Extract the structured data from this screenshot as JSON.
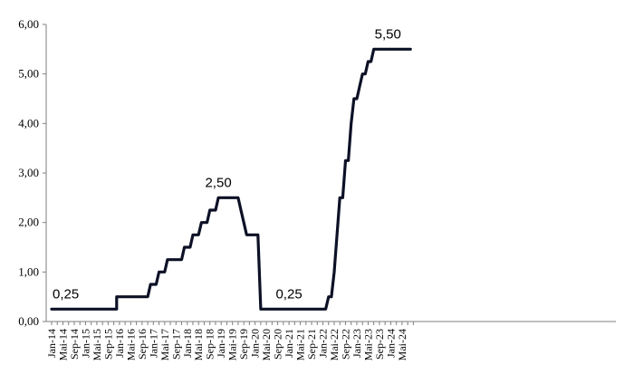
{
  "chart_data": {
    "type": "line",
    "title": "",
    "xlabel": "",
    "ylabel": "",
    "ylim": [
      0,
      6
    ],
    "grid": false,
    "legend": "none",
    "line_color": "#0d1126",
    "y_ticks": [
      "0,00",
      "1,00",
      "2,00",
      "3,00",
      "4,00",
      "5,00",
      "6,00"
    ],
    "x_ticks": [
      "Jan-14",
      "Mai-14",
      "Sep-14",
      "Jan-15",
      "Mai-15",
      "Sep-15",
      "Jan-16",
      "Mai-16",
      "Sep-16",
      "Jan-17",
      "Mai-17",
      "Sep-17",
      "Jan-18",
      "Mai-18",
      "Sep-18",
      "Jan-19",
      "Mai-19",
      "Sep-19",
      "Jan-20",
      "Mai-20",
      "Sep-20",
      "Jan-21",
      "Mai-21",
      "Sep-21",
      "Jan-22",
      "Mai-22",
      "Sep-22",
      "Jan-23",
      "Mai-23",
      "Sep-23",
      "Jan-24",
      "Mai-24"
    ],
    "annotations": [
      {
        "text": "0,25",
        "x": "2014-06",
        "y": 0.25
      },
      {
        "text": "2,50",
        "x": "2018-12",
        "y": 2.5
      },
      {
        "text": "0,25",
        "x": "2021-01",
        "y": 0.25
      },
      {
        "text": "5,50",
        "x": "2023-12",
        "y": 5.5
      }
    ],
    "series": [
      {
        "points": [
          [
            "2014-01",
            0.25
          ],
          [
            "2015-12",
            0.25
          ],
          [
            "2015-12",
            0.5
          ],
          [
            "2016-11",
            0.5
          ],
          [
            "2016-12",
            0.75
          ],
          [
            "2017-02",
            0.75
          ],
          [
            "2017-03",
            1.0
          ],
          [
            "2017-05",
            1.0
          ],
          [
            "2017-06",
            1.25
          ],
          [
            "2017-11",
            1.25
          ],
          [
            "2017-12",
            1.5
          ],
          [
            "2018-02",
            1.5
          ],
          [
            "2018-03",
            1.75
          ],
          [
            "2018-05",
            1.75
          ],
          [
            "2018-06",
            2.0
          ],
          [
            "2018-08",
            2.0
          ],
          [
            "2018-09",
            2.25
          ],
          [
            "2018-11",
            2.25
          ],
          [
            "2018-12",
            2.5
          ],
          [
            "2019-07",
            2.5
          ],
          [
            "2019-08",
            2.25
          ],
          [
            "2019-09",
            2.0
          ],
          [
            "2019-10",
            1.75
          ],
          [
            "2020-02",
            1.75
          ],
          [
            "2020-03",
            0.25
          ],
          [
            "2022-02",
            0.25
          ],
          [
            "2022-03",
            0.5
          ],
          [
            "2022-04",
            0.5
          ],
          [
            "2022-05",
            1.0
          ],
          [
            "2022-06",
            1.75
          ],
          [
            "2022-07",
            2.5
          ],
          [
            "2022-08",
            2.5
          ],
          [
            "2022-09",
            3.25
          ],
          [
            "2022-10",
            3.25
          ],
          [
            "2022-11",
            4.0
          ],
          [
            "2022-12",
            4.5
          ],
          [
            "2023-01",
            4.5
          ],
          [
            "2023-02",
            4.75
          ],
          [
            "2023-03",
            5.0
          ],
          [
            "2023-04",
            5.0
          ],
          [
            "2023-05",
            5.25
          ],
          [
            "2023-06",
            5.25
          ],
          [
            "2023-07",
            5.5
          ],
          [
            "2024-08",
            5.5
          ]
        ]
      }
    ]
  }
}
